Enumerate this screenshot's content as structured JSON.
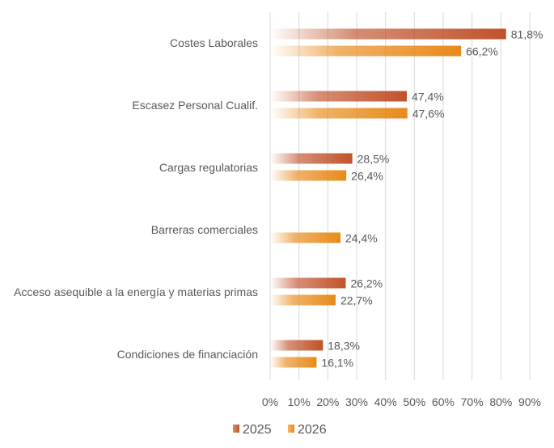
{
  "chart_data": {
    "type": "bar",
    "orientation": "horizontal",
    "categories": [
      "Costes Laborales",
      "Escasez Personal Cualif.",
      "Cargas regulatorias",
      "Barreras comerciales",
      "Acceso asequible a la energía y materias primas",
      "Condiciones de financiación"
    ],
    "series": [
      {
        "name": "2025",
        "color": "#C0522A",
        "values": [
          81.8,
          47.4,
          28.5,
          null,
          26.2,
          18.3
        ],
        "labels": [
          "81,8%",
          "47,4%",
          "28,5%",
          null,
          "26,2%",
          "18,3%"
        ]
      },
      {
        "name": "2026",
        "color": "#E88A1A",
        "values": [
          66.2,
          47.6,
          26.4,
          24.4,
          22.7,
          16.1
        ],
        "labels": [
          "66,2%",
          "47,6%",
          "26,4%",
          "24,4%",
          "22,7%",
          "16,1%"
        ]
      }
    ],
    "xlim": [
      0,
      90
    ],
    "xticks": [
      "0%",
      "10%",
      "20%",
      "30%",
      "40%",
      "50%",
      "60%",
      "70%",
      "80%",
      "90%"
    ],
    "grid": true,
    "legend_position": "bottom-center",
    "title": "",
    "xlabel": "",
    "ylabel": ""
  }
}
